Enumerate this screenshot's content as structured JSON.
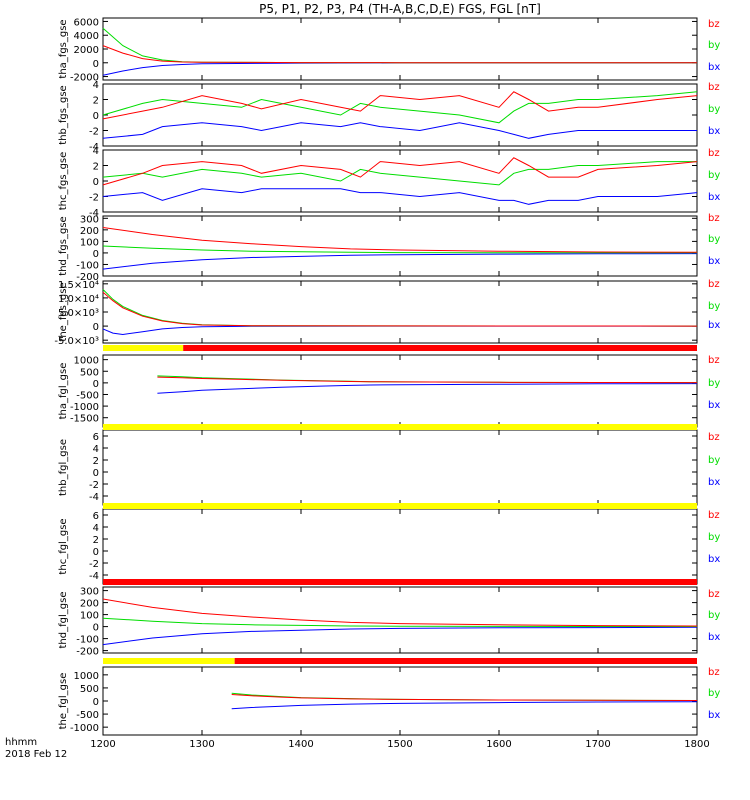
{
  "title": "P5, P1, P2, P3, P4 (TH-A,B,C,D,E) FGS, FGL [nT]",
  "footer": {
    "time_label": "hhmm",
    "date_label": "2018 Feb 12"
  },
  "colors": {
    "bx": "#0000ff",
    "by": "#00dd00",
    "bz": "#ff0000",
    "yellow": "#ffff00",
    "red": "#ff0000"
  },
  "chart_data": {
    "type": "line",
    "xlim": [
      1200,
      1800
    ],
    "x_ticks": [
      "1200",
      "1300",
      "1400",
      "1500",
      "1600",
      "1700",
      "1800"
    ],
    "panels": [
      {
        "label": "tha_fgs_gse",
        "ylim": [
          -2500,
          6500
        ],
        "ticks": [
          "6000",
          "4000",
          "2000",
          "0",
          "-2000"
        ],
        "legend": [
          "bz",
          "by",
          "bx"
        ],
        "series": [
          {
            "name": "bz",
            "x": [
              1200,
              1220,
              1240,
              1260,
              1280,
              1300,
              1400,
              1500,
              1800
            ],
            "y": [
              2500,
              1400,
              600,
              250,
              120,
              80,
              30,
              15,
              10
            ]
          },
          {
            "name": "by",
            "x": [
              1200,
              1220,
              1240,
              1260,
              1280,
              1300,
              1400,
              1500,
              1800
            ],
            "y": [
              5000,
              2500,
              1000,
              400,
              150,
              80,
              30,
              10,
              5
            ]
          },
          {
            "name": "bx",
            "x": [
              1200,
              1220,
              1240,
              1260,
              1280,
              1300,
              1400,
              1500,
              1800
            ],
            "y": [
              -1800,
              -1200,
              -700,
              -400,
              -250,
              -150,
              -50,
              -20,
              -10
            ]
          }
        ]
      },
      {
        "label": "thb_fgs_gse",
        "ylim": [
          -4,
          4
        ],
        "ticks": [
          "4",
          "2",
          "0",
          "-2",
          "-4"
        ],
        "legend": [
          "bz",
          "by",
          "bx"
        ],
        "series": [
          {
            "name": "bz",
            "x": [
              1200,
              1240,
              1260,
              1300,
              1340,
              1360,
              1400,
              1440,
              1460,
              1480,
              1520,
              1560,
              1600,
              1615,
              1630,
              1650,
              1680,
              1700,
              1760,
              1800
            ],
            "y": [
              -0.5,
              0.5,
              1.0,
              2.5,
              1.5,
              0.8,
              2.0,
              1.0,
              0.5,
              2.5,
              2.0,
              2.5,
              1.0,
              3.0,
              2.0,
              0.5,
              1.0,
              1.0,
              2.0,
              2.5
            ]
          },
          {
            "name": "by",
            "x": [
              1200,
              1240,
              1260,
              1300,
              1340,
              1360,
              1400,
              1440,
              1460,
              1480,
              1520,
              1560,
              1600,
              1615,
              1630,
              1650,
              1680,
              1700,
              1760,
              1800
            ],
            "y": [
              0,
              1.5,
              2.0,
              1.5,
              1.0,
              2.0,
              1.0,
              0.0,
              1.5,
              1.0,
              0.5,
              0.0,
              -1.0,
              0.5,
              1.5,
              1.5,
              2.0,
              2.0,
              2.5,
              3.0
            ]
          },
          {
            "name": "bx",
            "x": [
              1200,
              1240,
              1260,
              1300,
              1340,
              1360,
              1400,
              1440,
              1460,
              1480,
              1520,
              1560,
              1600,
              1615,
              1630,
              1650,
              1680,
              1700,
              1760,
              1800
            ],
            "y": [
              -3.0,
              -2.5,
              -1.5,
              -1.0,
              -1.5,
              -2.0,
              -1.0,
              -1.5,
              -1.0,
              -1.5,
              -2.0,
              -1.0,
              -2.0,
              -2.5,
              -3.0,
              -2.5,
              -2.0,
              -2.0,
              -2.0,
              -2.0
            ]
          }
        ]
      },
      {
        "label": "thc_fgs_gse",
        "ylim": [
          -4,
          4
        ],
        "ticks": [
          "4",
          "2",
          "0",
          "-2",
          "-4"
        ],
        "legend": [
          "bz",
          "by",
          "bx"
        ],
        "series": [
          {
            "name": "bz",
            "x": [
              1200,
              1240,
              1260,
              1300,
              1340,
              1360,
              1400,
              1440,
              1460,
              1480,
              1520,
              1560,
              1600,
              1615,
              1630,
              1650,
              1680,
              1700,
              1760,
              1800
            ],
            "y": [
              -0.5,
              1.0,
              2.0,
              2.5,
              2.0,
              1.0,
              2.0,
              1.5,
              0.5,
              2.5,
              2.0,
              2.5,
              1.0,
              3.0,
              2.0,
              0.5,
              0.5,
              1.5,
              2.0,
              2.5
            ]
          },
          {
            "name": "by",
            "x": [
              1200,
              1240,
              1260,
              1300,
              1340,
              1360,
              1400,
              1440,
              1460,
              1480,
              1520,
              1560,
              1600,
              1615,
              1630,
              1650,
              1680,
              1700,
              1760,
              1800
            ],
            "y": [
              0.5,
              1.0,
              0.5,
              1.5,
              1.0,
              0.5,
              1.0,
              0.0,
              1.5,
              1.0,
              0.5,
              0.0,
              -0.5,
              1.0,
              1.5,
              1.5,
              2.0,
              2.0,
              2.5,
              2.5
            ]
          },
          {
            "name": "bx",
            "x": [
              1200,
              1240,
              1260,
              1300,
              1340,
              1360,
              1400,
              1440,
              1460,
              1480,
              1520,
              1560,
              1600,
              1615,
              1630,
              1650,
              1680,
              1700,
              1760,
              1800
            ],
            "y": [
              -2.0,
              -1.5,
              -2.5,
              -1.0,
              -1.5,
              -1.0,
              -1.0,
              -1.0,
              -1.5,
              -1.5,
              -2.0,
              -1.5,
              -2.5,
              -2.5,
              -3.0,
              -2.5,
              -2.5,
              -2.0,
              -2.0,
              -1.5
            ]
          }
        ]
      },
      {
        "label": "thd_fgs_gse",
        "ylim": [
          -200,
          320
        ],
        "ticks": [
          "300",
          "200",
          "100",
          "0",
          "-100",
          "-200"
        ],
        "legend": [
          "bz",
          "by",
          "bx"
        ],
        "series": [
          {
            "name": "bz",
            "x": [
              1200,
              1250,
              1300,
              1350,
              1400,
              1450,
              1500,
              1600,
              1700,
              1800
            ],
            "y": [
              220,
              160,
              110,
              80,
              55,
              35,
              25,
              15,
              8,
              5
            ]
          },
          {
            "name": "by",
            "x": [
              1200,
              1250,
              1300,
              1350,
              1400,
              1450,
              1500,
              1600,
              1700,
              1800
            ],
            "y": [
              60,
              40,
              25,
              15,
              10,
              5,
              3,
              2,
              1,
              1
            ]
          },
          {
            "name": "bx",
            "x": [
              1200,
              1250,
              1300,
              1350,
              1400,
              1450,
              1500,
              1600,
              1700,
              1800
            ],
            "y": [
              -140,
              -90,
              -60,
              -40,
              -30,
              -20,
              -15,
              -10,
              -8,
              -6
            ]
          }
        ]
      },
      {
        "label": "the_fgs_gse",
        "ylim": [
          -6000,
          16000
        ],
        "ticks": [
          "1.5×10⁴",
          "1.0×10⁴",
          "5.0×10³",
          "0",
          "-5.0×10³"
        ],
        "legend": [
          "bz",
          "by",
          "bx"
        ],
        "series": [
          {
            "name": "bz",
            "x": [
              1200,
              1210,
              1220,
              1240,
              1260,
              1280,
              1300,
              1350,
              1800
            ],
            "y": [
              12000,
              9000,
              6500,
              3500,
              1800,
              900,
              400,
              100,
              0
            ]
          },
          {
            "name": "by",
            "x": [
              1200,
              1210,
              1220,
              1240,
              1260,
              1280,
              1300,
              1350,
              1800
            ],
            "y": [
              13000,
              9500,
              7000,
              3800,
              2000,
              1000,
              500,
              100,
              0
            ]
          },
          {
            "name": "bx",
            "x": [
              1200,
              1210,
              1220,
              1240,
              1260,
              1280,
              1300,
              1350,
              1800
            ],
            "y": [
              -1000,
              -2500,
              -3000,
              -2000,
              -1000,
              -500,
              -200,
              -50,
              0
            ]
          }
        ]
      },
      {
        "label": "tha_fgl_gse",
        "ylim": [
          -1900,
          1200
        ],
        "ticks": [
          "1000",
          "500",
          "0",
          "-500",
          "-1000",
          "-1500"
        ],
        "legend": [
          "bz",
          "by",
          "bx"
        ],
        "series": [
          {
            "name": "bz",
            "x": [
              1255,
              1280,
              1300,
              1340,
              1380,
              1420,
              1450,
              1470,
              1500,
              1600,
              1700,
              1800
            ],
            "y": [
              250,
              220,
              190,
              150,
              110,
              80,
              60,
              50,
              40,
              25,
              15,
              10
            ]
          },
          {
            "name": "by",
            "x": [
              1255,
              1280,
              1300,
              1340,
              1380,
              1420,
              1450,
              1470,
              1500,
              1600,
              1700,
              1800
            ],
            "y": [
              300,
              260,
              220,
              170,
              120,
              90,
              70,
              50,
              40,
              25,
              15,
              10
            ]
          },
          {
            "name": "bx",
            "x": [
              1255,
              1280,
              1300,
              1340,
              1380,
              1420,
              1450,
              1470,
              1500,
              1600,
              1700,
              1800
            ],
            "y": [
              -450,
              -380,
              -320,
              -250,
              -190,
              -140,
              -110,
              -90,
              -80,
              -60,
              -40,
              -30
            ]
          }
        ]
      },
      {
        "label": "thb_fgl_gse",
        "ylim": [
          -5.5,
          7
        ],
        "ticks": [
          "6",
          "4",
          "2",
          "0",
          "-2",
          "-4"
        ],
        "legend": [
          "bz",
          "by",
          "bx"
        ],
        "series": []
      },
      {
        "label": "thc_fgl_gse",
        "ylim": [
          -5.5,
          7
        ],
        "ticks": [
          "6",
          "4",
          "2",
          "0",
          "-2",
          "-4"
        ],
        "legend": [
          "bz",
          "by",
          "bx"
        ],
        "series": []
      },
      {
        "label": "thd_fgl_gse",
        "ylim": [
          -220,
          330
        ],
        "ticks": [
          "300",
          "200",
          "100",
          "0",
          "-100",
          "-200"
        ],
        "legend": [
          "bz",
          "by",
          "bx"
        ],
        "series": [
          {
            "name": "bz",
            "x": [
              1200,
              1250,
              1300,
              1350,
              1400,
              1450,
              1500,
              1600,
              1700,
              1800
            ],
            "y": [
              230,
              160,
              110,
              80,
              55,
              35,
              25,
              15,
              8,
              5
            ]
          },
          {
            "name": "by",
            "x": [
              1200,
              1250,
              1300,
              1350,
              1400,
              1450,
              1500,
              1600,
              1700,
              1800
            ],
            "y": [
              70,
              45,
              25,
              15,
              10,
              5,
              3,
              2,
              1,
              1
            ]
          },
          {
            "name": "bx",
            "x": [
              1200,
              1250,
              1300,
              1350,
              1400,
              1450,
              1500,
              1600,
              1700,
              1800
            ],
            "y": [
              -150,
              -95,
              -60,
              -40,
              -30,
              -20,
              -15,
              -10,
              -8,
              -6
            ]
          }
        ]
      },
      {
        "label": "the_fgl_gse",
        "ylim": [
          -1300,
          1300
        ],
        "ticks": [
          "1000",
          "500",
          "0",
          "-500",
          "-1000"
        ],
        "legend": [
          "bz",
          "by",
          "bx"
        ],
        "series": [
          {
            "name": "bz",
            "x": [
              1330,
              1350,
              1380,
              1400,
              1450,
              1500,
              1600,
              1700,
              1800
            ],
            "y": [
              250,
              200,
              150,
              120,
              80,
              60,
              40,
              25,
              20
            ]
          },
          {
            "name": "by",
            "x": [
              1330,
              1350,
              1380,
              1400,
              1450,
              1500,
              1600,
              1700,
              1800
            ],
            "y": [
              300,
              230,
              170,
              130,
              90,
              60,
              40,
              25,
              20
            ]
          },
          {
            "name": "bx",
            "x": [
              1330,
              1350,
              1380,
              1400,
              1450,
              1500,
              1600,
              1700,
              1800
            ],
            "y": [
              -300,
              -250,
              -200,
              -170,
              -120,
              -90,
              -60,
              -40,
              -30
            ]
          }
        ]
      }
    ],
    "mode_bars": [
      {
        "after_panel": 4,
        "segments": [
          {
            "from": 1200,
            "to": 1281,
            "color": "yellow"
          },
          {
            "from": 1281,
            "to": 1800,
            "color": "red"
          }
        ]
      },
      {
        "after_panel": 5,
        "segments": [
          {
            "from": 1200,
            "to": 1800,
            "color": "yellow"
          }
        ]
      },
      {
        "after_panel": 6,
        "segments": [
          {
            "from": 1200,
            "to": 1800,
            "color": "yellow"
          }
        ]
      },
      {
        "after_panel": 7,
        "segments": [
          {
            "from": 1200,
            "to": 1800,
            "color": "red"
          }
        ]
      },
      {
        "after_panel": 8,
        "segments": [
          {
            "from": 1200,
            "to": 1333,
            "color": "yellow"
          },
          {
            "from": 1333,
            "to": 1800,
            "color": "red"
          }
        ]
      }
    ]
  }
}
